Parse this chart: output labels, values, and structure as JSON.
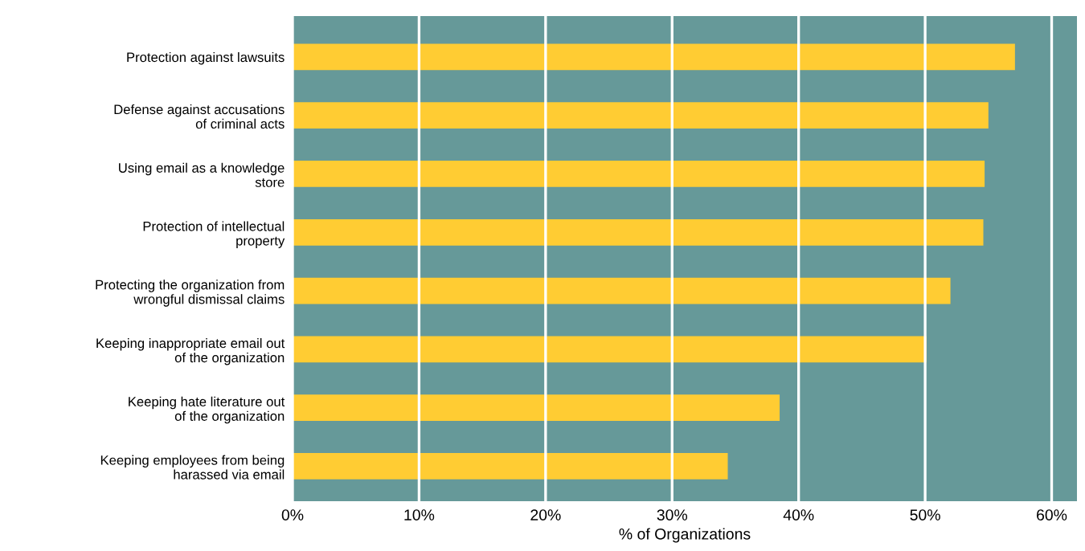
{
  "chart_data": {
    "type": "bar",
    "orientation": "horizontal",
    "xlabel": "% of Organizations",
    "categories": [
      "Protection against lawsuits",
      "Defense against accusations\nof criminal acts",
      "Using email as a knowledge\nstore",
      "Protection of intellectual\nproperty",
      "Protecting the organization from\nwrongful dismissal claims",
      "Keeping inappropriate email out\nof the organization",
      "Keeping hate literature out\nof the organization",
      "Keeping employees from being\nharassed via email"
    ],
    "values": [
      57.1,
      55.0,
      54.7,
      54.6,
      52.0,
      50.1,
      38.5,
      34.4
    ],
    "color": "#ffcc33",
    "xlim": [
      0,
      62
    ],
    "xticks": [
      {
        "value": 0,
        "label": "0%"
      },
      {
        "value": 10,
        "label": "10%"
      },
      {
        "value": 20,
        "label": "20%"
      },
      {
        "value": 30,
        "label": "30%"
      },
      {
        "value": 40,
        "label": "40%"
      },
      {
        "value": 50,
        "label": "50%"
      },
      {
        "value": 60,
        "label": "60%"
      }
    ],
    "grid": "x"
  }
}
